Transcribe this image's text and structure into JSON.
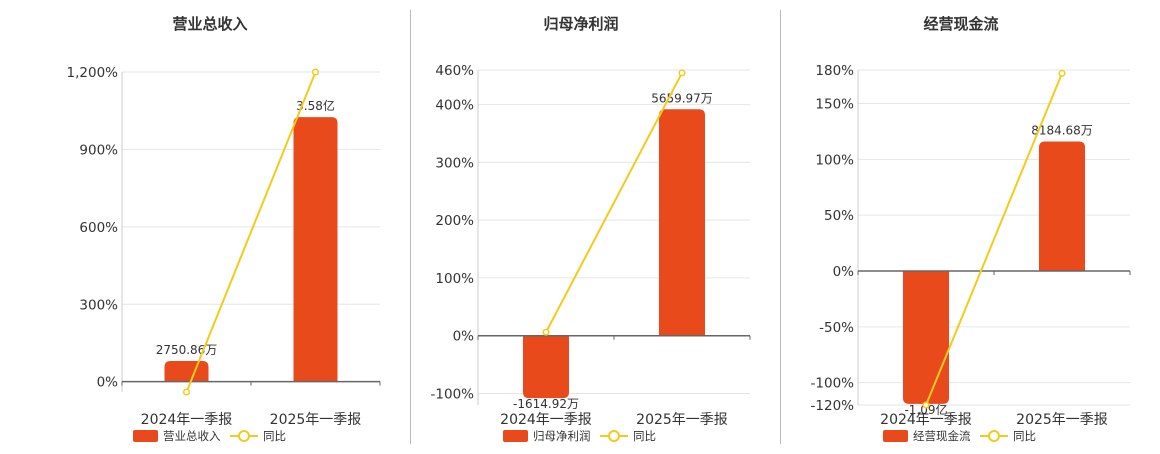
{
  "colors": {
    "bar": "#e84a1c",
    "line": "#f2cb1d",
    "grid": "#e6e6e6",
    "axis": "#666666",
    "text": "#333333"
  },
  "chart_data": [
    {
      "type": "bar",
      "title": "营业总收入",
      "categories": [
        "2024年一季报",
        "2025年一季报"
      ],
      "bar_values": [
        2750.86,
        35800
      ],
      "bar_labels": [
        "2750.86万",
        "3.58亿"
      ],
      "yoy_values": [
        -40,
        1200
      ],
      "yticks": [
        0,
        300,
        600,
        900,
        1200
      ],
      "ytick_labels": [
        "0%",
        "300%",
        "600%",
        "900%",
        "1,200%"
      ],
      "ylim": [
        -40,
        1200
      ],
      "bar_pct": [
        80,
        1025
      ],
      "legend": [
        "营业总收入",
        "同比"
      ],
      "legend_position": "bottom"
    },
    {
      "type": "bar",
      "title": "归母净利润",
      "categories": [
        "2024年一季报",
        "2025年一季报"
      ],
      "bar_values": [
        -1614.92,
        5659.97
      ],
      "bar_labels": [
        "-1614.92万",
        "5659.97万"
      ],
      "yoy_values": [
        6,
        455
      ],
      "yticks": [
        -100,
        0,
        100,
        200,
        300,
        400,
        460
      ],
      "ytick_labels": [
        "-100%",
        "0%",
        "100%",
        "200%",
        "300%",
        "400%",
        "460%"
      ],
      "ylim": [
        -120,
        460
      ],
      "bar_pct": [
        -108,
        392
      ],
      "legend": [
        "归母净利润",
        "同比"
      ],
      "legend_position": "bottom"
    },
    {
      "type": "bar",
      "title": "经营现金流",
      "categories": [
        "2024年一季报",
        "2025年一季报"
      ],
      "bar_values": [
        -10900,
        8184.68
      ],
      "bar_labels": [
        "-1.09亿",
        "8184.68万"
      ],
      "yoy_values": [
        -120,
        177
      ],
      "yticks": [
        -120,
        -100,
        -50,
        0,
        50,
        100,
        150,
        180
      ],
      "ytick_labels": [
        "-120%",
        "-100%",
        "-50%",
        "0%",
        "50%",
        "100%",
        "150%",
        "180%"
      ],
      "ylim": [
        -120,
        180
      ],
      "bar_pct": [
        -119,
        116
      ],
      "legend": [
        "经营现金流",
        "同比"
      ],
      "legend_position": "bottom"
    }
  ]
}
